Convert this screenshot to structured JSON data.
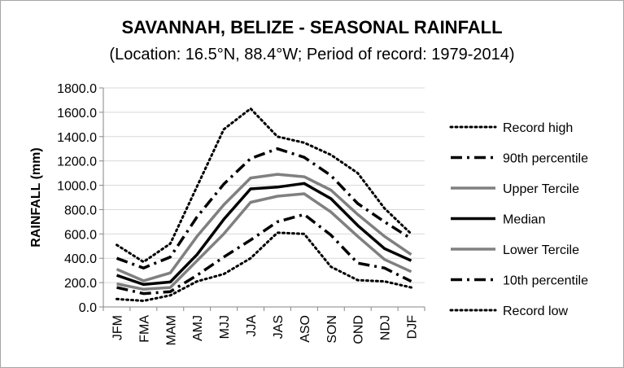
{
  "chart_data": {
    "type": "line",
    "title": "SAVANNAH, BELIZE - SEASONAL RAINFALL",
    "subtitle": "(Location: 16.5°N, 88.4°W; Period of record: 1979-2014)",
    "xlabel": "",
    "ylabel": "RAINFALL (mm)",
    "ylim": [
      0,
      1800
    ],
    "y_ticks": [
      "0.0",
      "200.0",
      "400.0",
      "600.0",
      "800.0",
      "1000.0",
      "1200.0",
      "1400.0",
      "1600.0",
      "1800.0"
    ],
    "grid": "horizontal",
    "legend_position": "right",
    "categories": [
      "JFM",
      "FMA",
      "MAM",
      "AMJ",
      "MJJ",
      "JJA",
      "JAS",
      "ASO",
      "SON",
      "OND",
      "NDJ",
      "DJF"
    ],
    "series": [
      {
        "name": "Record high",
        "style": "dotted",
        "color": "#000000",
        "values": [
          510,
          370,
          520,
          990,
          1460,
          1630,
          1400,
          1350,
          1250,
          1100,
          810,
          600
        ]
      },
      {
        "name": "90th percentile",
        "style": "dash-dot",
        "color": "#000000",
        "values": [
          400,
          320,
          410,
          740,
          1010,
          1220,
          1300,
          1230,
          1080,
          850,
          700,
          560
        ]
      },
      {
        "name": "Upper Tercile",
        "style": "solid-gray",
        "color": "#808080",
        "values": [
          310,
          215,
          280,
          580,
          840,
          1060,
          1090,
          1070,
          960,
          760,
          580,
          430
        ]
      },
      {
        "name": "Median",
        "style": "solid",
        "color": "#000000",
        "values": [
          260,
          185,
          205,
          430,
          720,
          970,
          985,
          1015,
          890,
          670,
          480,
          380
        ]
      },
      {
        "name": "Lower Tercile",
        "style": "solid-gray",
        "color": "#808080",
        "values": [
          190,
          145,
          160,
          380,
          600,
          860,
          910,
          930,
          780,
          580,
          390,
          290
        ]
      },
      {
        "name": "10th percentile",
        "style": "dash-dot",
        "color": "#000000",
        "values": [
          160,
          110,
          125,
          260,
          410,
          550,
          700,
          760,
          590,
          360,
          320,
          210
        ]
      },
      {
        "name": "Record low",
        "style": "dotted",
        "color": "#000000",
        "values": [
          65,
          50,
          95,
          210,
          270,
          400,
          610,
          600,
          330,
          220,
          210,
          160
        ]
      }
    ]
  }
}
